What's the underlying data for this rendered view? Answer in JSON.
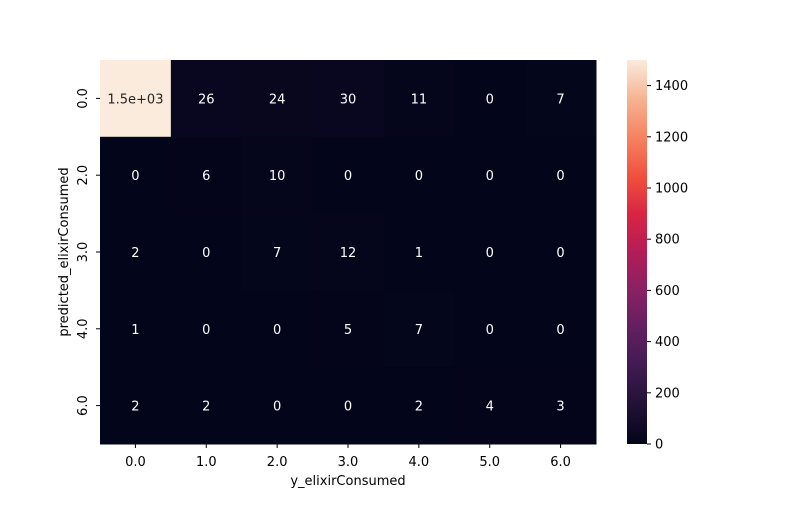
{
  "chart_data": {
    "type": "heatmap",
    "title": "",
    "xlabel": "y_elixirConsumed",
    "ylabel": "predicted_elixirConsumed",
    "x_categories": [
      "0.0",
      "1.0",
      "2.0",
      "3.0",
      "4.0",
      "5.0",
      "6.0"
    ],
    "y_categories": [
      "0.0",
      "2.0",
      "3.0",
      "4.0",
      "6.0"
    ],
    "values": [
      [
        1500,
        26,
        24,
        30,
        11,
        0,
        7
      ],
      [
        0,
        6,
        10,
        0,
        0,
        0,
        0
      ],
      [
        2,
        0,
        7,
        12,
        1,
        0,
        0
      ],
      [
        1,
        0,
        0,
        5,
        7,
        0,
        0
      ],
      [
        2,
        2,
        0,
        0,
        2,
        4,
        3
      ]
    ],
    "cell_labels": [
      [
        "1.5e+03",
        "26",
        "24",
        "30",
        "11",
        "0",
        "7"
      ],
      [
        "0",
        "6",
        "10",
        "0",
        "0",
        "0",
        "0"
      ],
      [
        "2",
        "0",
        "7",
        "12",
        "1",
        "0",
        "0"
      ],
      [
        "1",
        "0",
        "0",
        "5",
        "7",
        "0",
        "0"
      ],
      [
        "2",
        "2",
        "0",
        "0",
        "2",
        "4",
        "3"
      ]
    ],
    "colorbar": {
      "min": 0,
      "max": 1500,
      "ticks": [
        0,
        200,
        400,
        600,
        800,
        1000,
        1200,
        1400
      ]
    },
    "colormap": "rocket",
    "grid": false
  }
}
